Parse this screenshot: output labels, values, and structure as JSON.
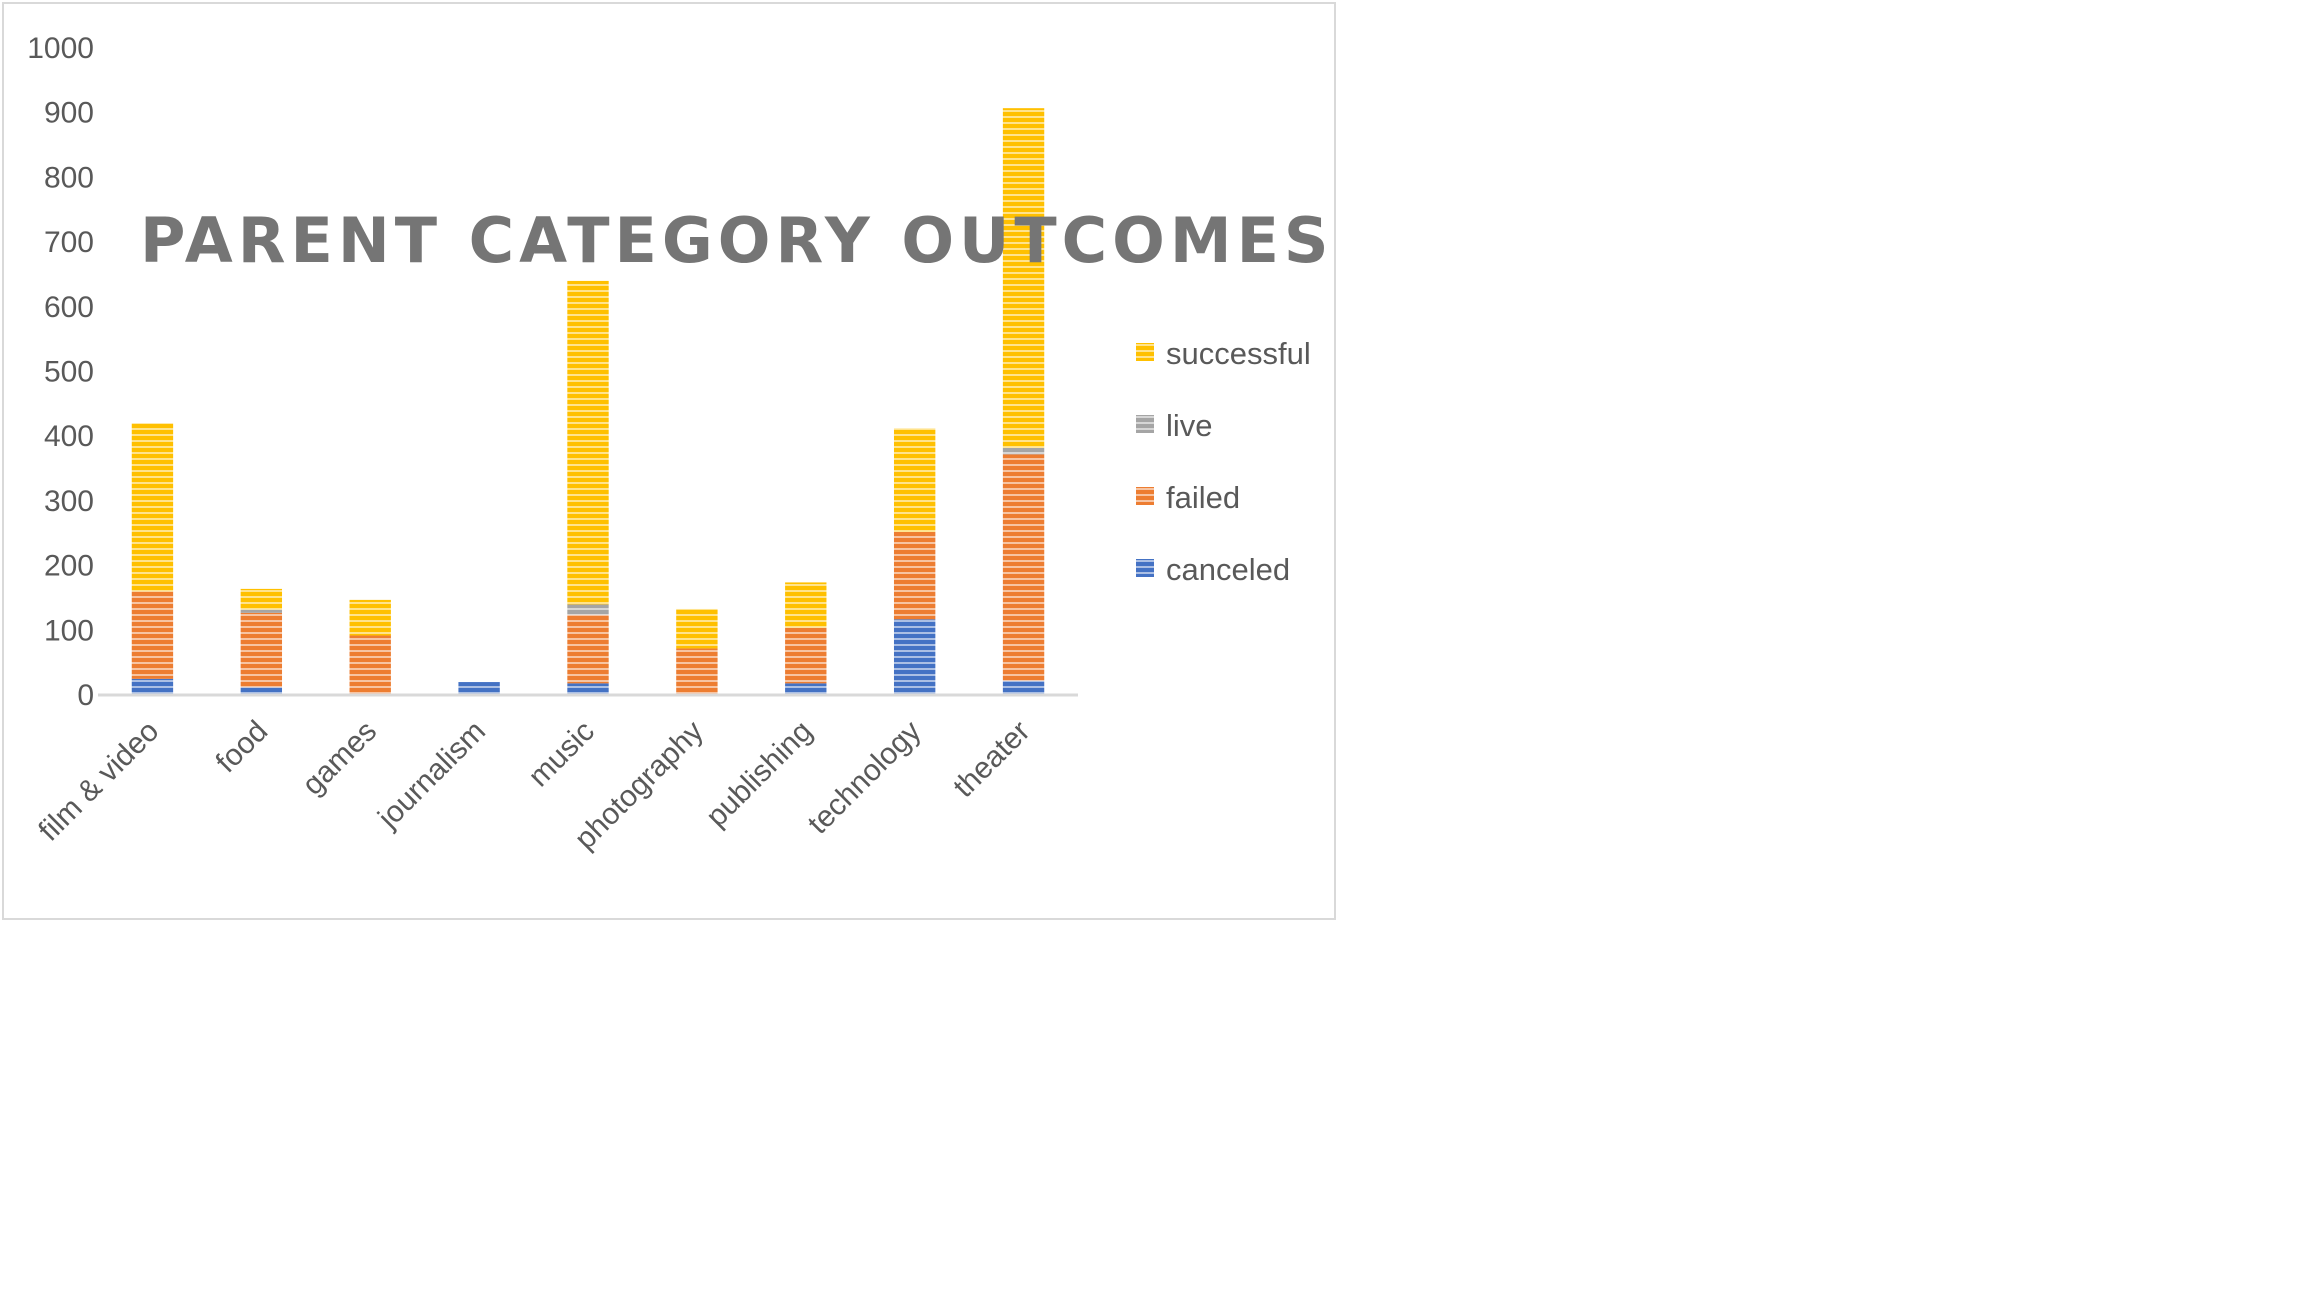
{
  "chart_data": {
    "type": "bar",
    "stacked": true,
    "title": "PARENT CATEGORY OUTCOMES",
    "xlabel": "",
    "ylabel": "",
    "ylim": [
      0,
      1000
    ],
    "yticks": [
      0,
      100,
      200,
      300,
      400,
      500,
      600,
      700,
      800,
      900,
      1000
    ],
    "categories": [
      "film & video",
      "food",
      "games",
      "journalism",
      "music",
      "photography",
      "publishing",
      "technology",
      "theater"
    ],
    "series": [
      {
        "name": "canceled",
        "color": "#4472C4",
        "values": [
          25,
          12,
          0,
          20,
          18,
          0,
          18,
          117,
          22
        ]
      },
      {
        "name": "failed",
        "color": "#ED7D31",
        "values": [
          135,
          115,
          92,
          0,
          106,
          72,
          86,
          135,
          350
        ]
      },
      {
        "name": "live",
        "color": "#A5A5A5",
        "values": [
          0,
          5,
          0,
          0,
          16,
          0,
          0,
          0,
          10
        ]
      },
      {
        "name": "successful",
        "color": "#FFC000",
        "values": [
          260,
          32,
          55,
          0,
          500,
          61,
          70,
          160,
          525
        ]
      }
    ],
    "grid": false,
    "legend_position": "right"
  }
}
